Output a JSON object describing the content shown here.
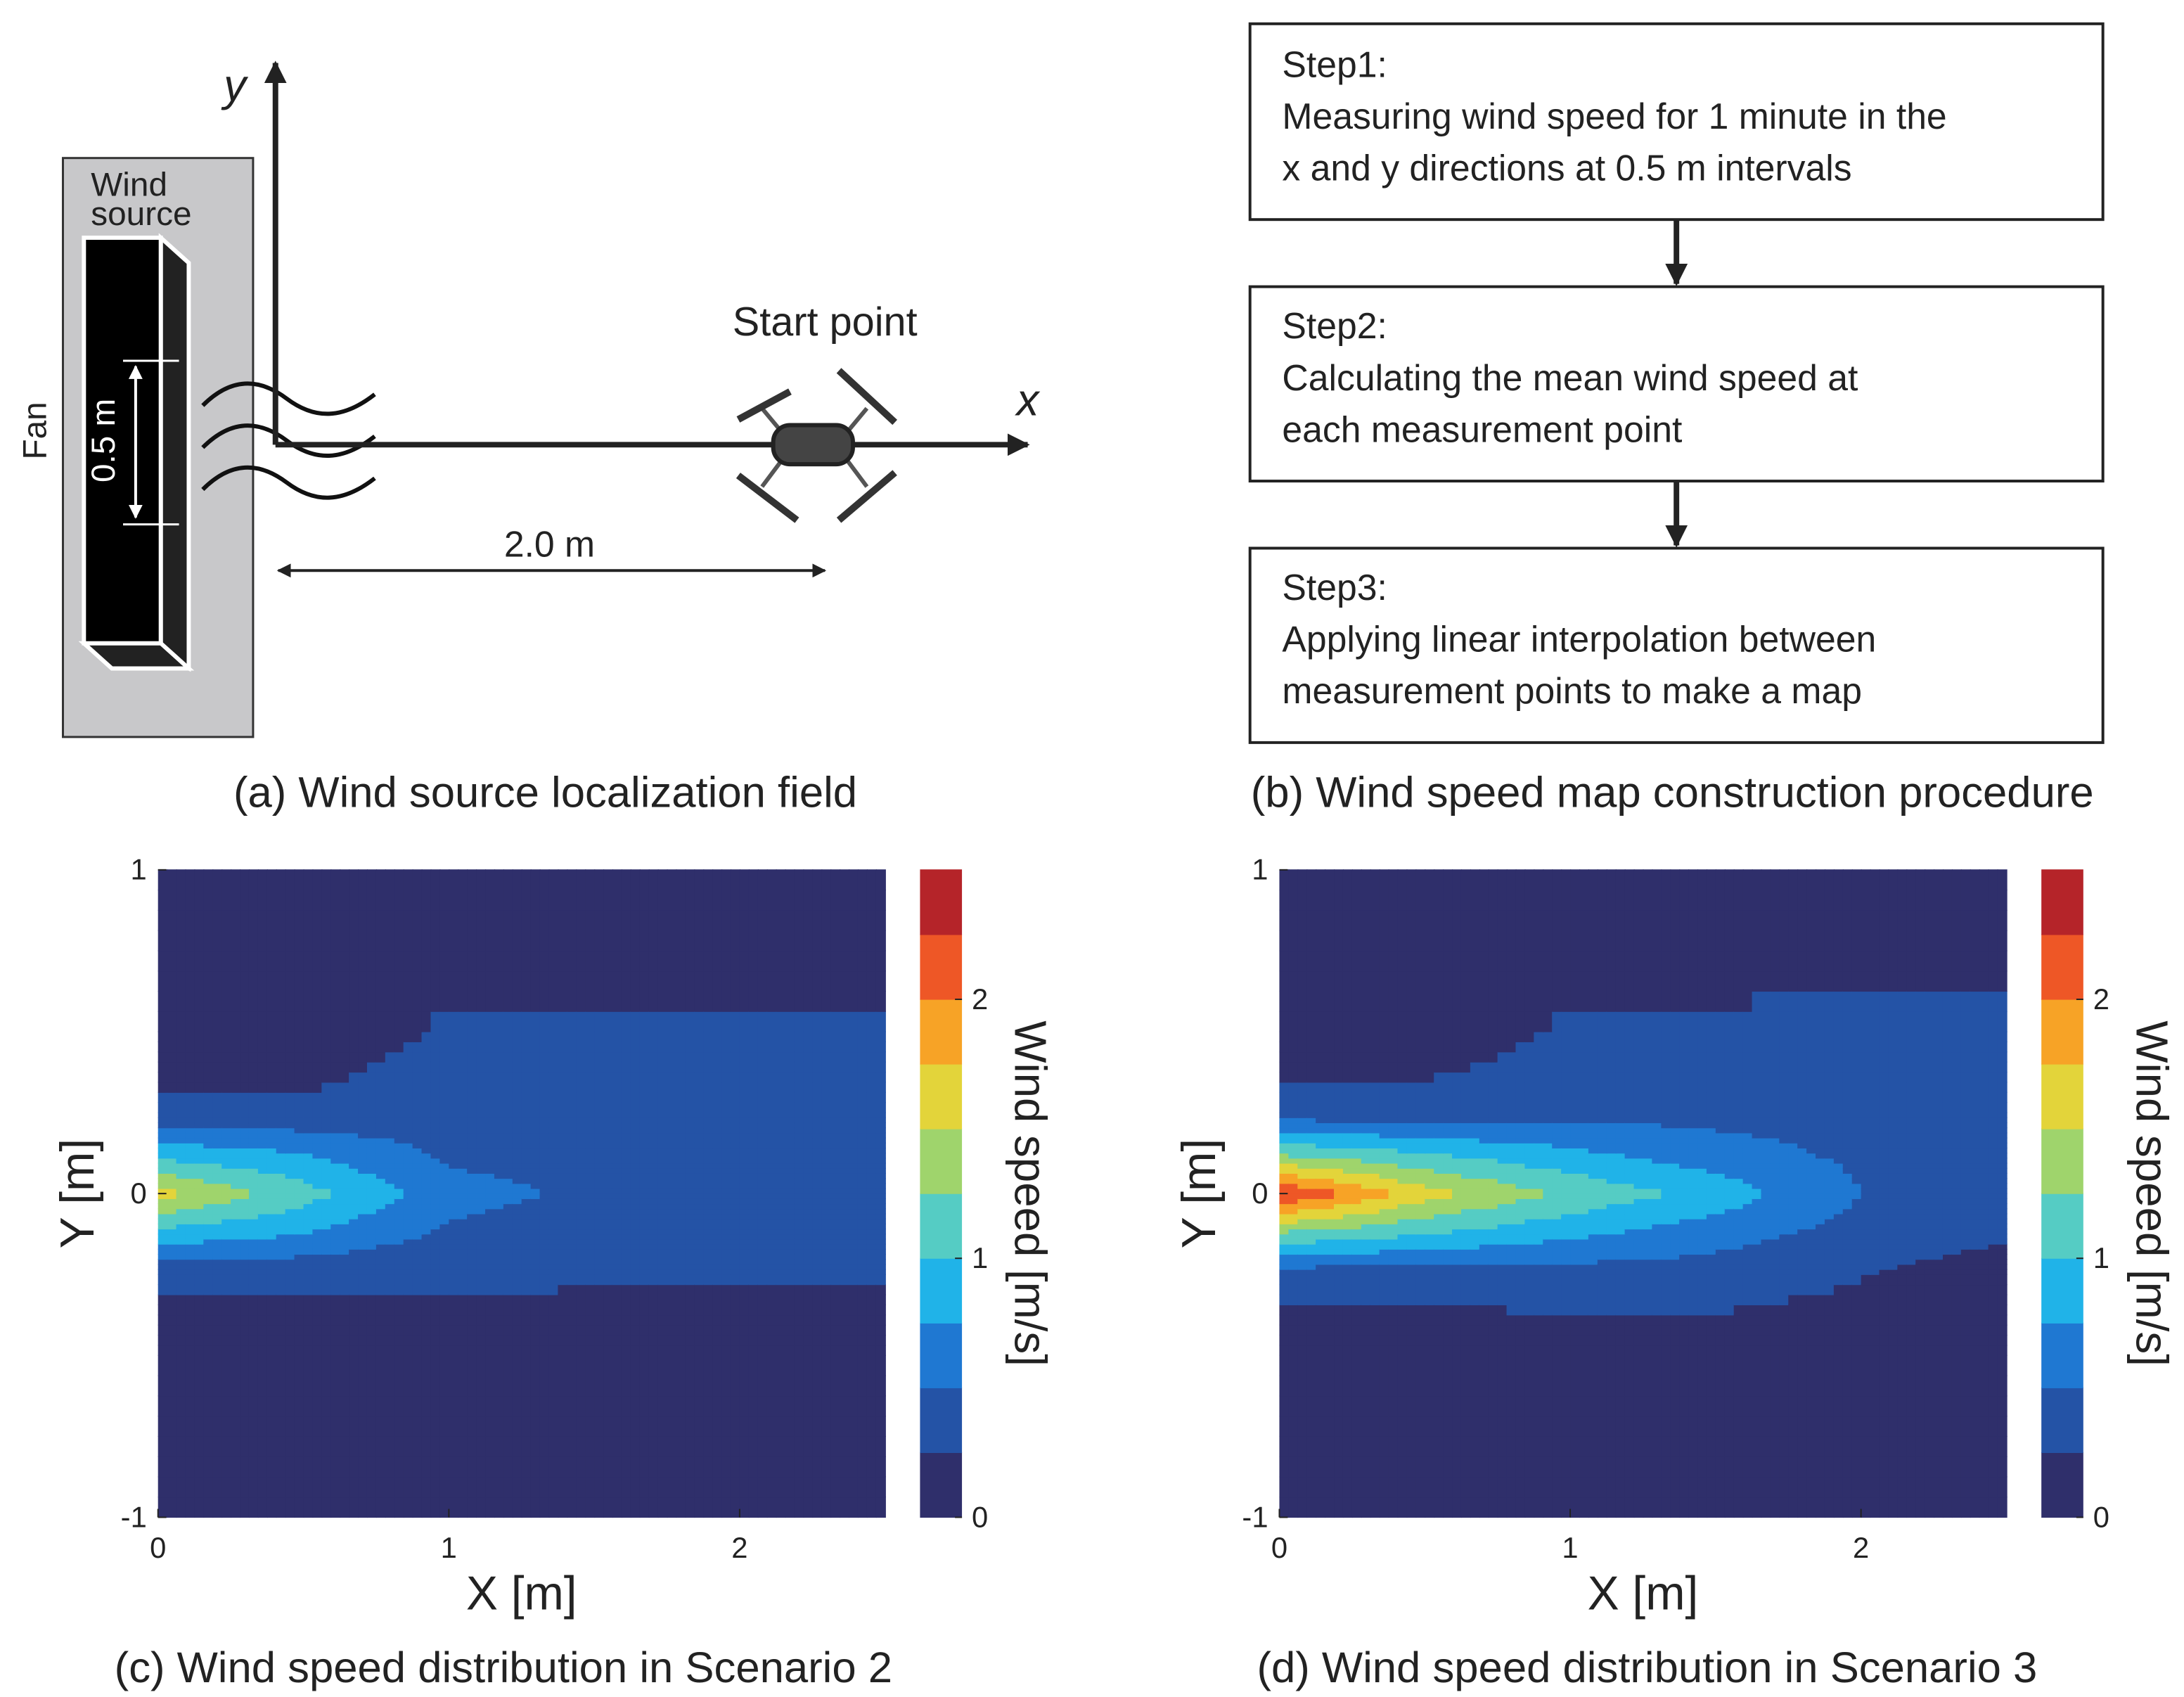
{
  "panel_a": {
    "wind_source": [
      "Wind",
      "source"
    ],
    "fan": "Fan",
    "spacing": "0.5 m",
    "y_axis": "y",
    "x_axis": "x",
    "start": "Start point",
    "distance": "2.0 m",
    "caption": "(a) Wind source localization field"
  },
  "panel_b": {
    "steps": [
      {
        "title": "Step1:",
        "lines": [
          "Measuring wind speed for 1 minute in the",
          "x and y directions at 0.5 m intervals"
        ]
      },
      {
        "title": "Step2:",
        "lines": [
          "Calculating the mean wind speed at",
          "each measurement point"
        ]
      },
      {
        "title": "Step3:",
        "lines": [
          "Applying linear interpolation between",
          "measurement points to make a map"
        ]
      }
    ],
    "caption": "(b) Wind speed map construction procedure"
  },
  "chart_data": [
    {
      "type": "contour",
      "caption": "(c) Wind speed distribution in Scenario 2",
      "xlabel": "X [m]",
      "ylabel": "Y [m]",
      "colorbar_label": "Wind speed [m/s]",
      "x": [
        0,
        0.5,
        1,
        1.5,
        2,
        2.5
      ],
      "y": [
        -1,
        -0.5,
        -0.25,
        -0.125,
        0,
        0.125,
        0.25,
        0.5,
        1
      ],
      "z": [
        [
          0.1,
          0.1,
          0.1,
          0.1,
          0.1,
          0.1
        ],
        [
          0.1,
          0.1,
          0.1,
          0.1,
          0.1,
          0.1
        ],
        [
          0.3,
          0.3,
          0.3,
          0.28,
          0.28,
          0.27
        ],
        [
          0.9,
          0.75,
          0.45,
          0.35,
          0.3,
          0.3
        ],
        [
          1.6,
          1.1,
          0.6,
          0.45,
          0.38,
          0.32
        ],
        [
          0.9,
          0.75,
          0.45,
          0.38,
          0.42,
          0.3
        ],
        [
          0.3,
          0.3,
          0.38,
          0.35,
          0.38,
          0.3
        ],
        [
          0.1,
          0.1,
          0.28,
          0.28,
          0.28,
          0.28
        ],
        [
          0.1,
          0.1,
          0.1,
          0.1,
          0.1,
          0.1
        ]
      ],
      "xlim": [
        0,
        2.5
      ],
      "ylim": [
        -1,
        1
      ],
      "xticks": [
        0,
        1,
        2
      ],
      "yticks": [
        -1,
        0,
        1
      ],
      "clim": [
        0,
        2.5
      ],
      "cticks": [
        0,
        1,
        2
      ],
      "colormap": [
        "#2f2f6b",
        "#2453a6",
        "#1f78d2",
        "#20b3e8",
        "#55ccc4",
        "#9fd46c",
        "#e3d43a",
        "#f7a326",
        "#ee5726",
        "#b52429"
      ]
    },
    {
      "type": "contour",
      "caption": "(d) Wind speed distribution in Scenario 3",
      "xlabel": "X [m]",
      "ylabel": "Y [m]",
      "colorbar_label": "Wind speed [m/s]",
      "x": [
        0,
        0.5,
        1,
        1.5,
        2,
        2.5
      ],
      "y": [
        -1,
        -0.5,
        -0.25,
        -0.125,
        0,
        0.125,
        0.25,
        0.5,
        1
      ],
      "z": [
        [
          0.1,
          0.1,
          0.1,
          0.1,
          0.1,
          0.1
        ],
        [
          0.1,
          0.1,
          0.1,
          0.1,
          0.1,
          0.1
        ],
        [
          0.35,
          0.35,
          0.38,
          0.38,
          0.26,
          0.1
        ],
        [
          1.2,
          1.0,
          0.8,
          0.6,
          0.4,
          0.3
        ],
        [
          2.3,
          1.6,
          1.2,
          0.9,
          0.5,
          0.42
        ],
        [
          1.2,
          1.0,
          0.8,
          0.6,
          0.45,
          0.38
        ],
        [
          0.35,
          0.35,
          0.42,
          0.42,
          0.42,
          0.36
        ],
        [
          0.1,
          0.1,
          0.28,
          0.28,
          0.3,
          0.3
        ],
        [
          0.1,
          0.1,
          0.1,
          0.1,
          0.1,
          0.1
        ]
      ],
      "xlim": [
        0,
        2.5
      ],
      "ylim": [
        -1,
        1
      ],
      "xticks": [
        0,
        1,
        2
      ],
      "yticks": [
        -1,
        0,
        1
      ],
      "clim": [
        0,
        2.5
      ],
      "cticks": [
        0,
        1,
        2
      ],
      "colormap": [
        "#2f2f6b",
        "#2453a6",
        "#1f78d2",
        "#20b3e8",
        "#55ccc4",
        "#9fd46c",
        "#e3d43a",
        "#f7a326",
        "#ee5726",
        "#b52429"
      ]
    }
  ]
}
